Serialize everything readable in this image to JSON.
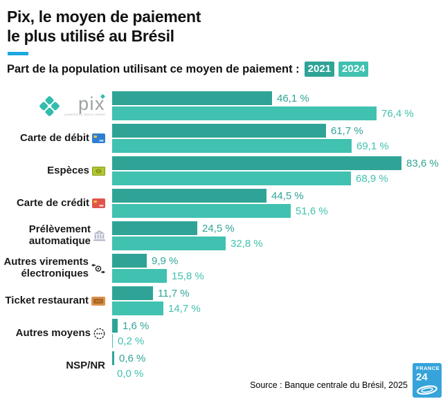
{
  "header": {
    "title_line1": "Pix, le moyen de paiement",
    "title_line2": "le plus utilisé au Brésil",
    "subtitle": "Part de la population utilisant ce moyen de paiement :"
  },
  "chart_data": {
    "type": "bar",
    "orientation": "horizontal",
    "unit": "%",
    "xlim": [
      0,
      100
    ],
    "grid": false,
    "legend_position": "top-right-of-subtitle",
    "categories": [
      "Pix",
      "Carte de débit",
      "Espèces",
      "Carte de crédit",
      "Prélèvement automatique",
      "Autres virements électroniques",
      "Ticket restaurant",
      "Autres moyens",
      "NSP/NR"
    ],
    "category_icons": [
      "pix-logo",
      "debit-card-icon",
      "cash-icon",
      "credit-card-icon",
      "bank-icon",
      "transfer-icon",
      "ticket-icon",
      "ellipsis-icon",
      null
    ],
    "series": [
      {
        "name": "2021",
        "color": "#2fa496",
        "values": [
          46.1,
          61.7,
          83.6,
          44.5,
          24.5,
          9.9,
          11.7,
          1.6,
          0.6
        ]
      },
      {
        "name": "2024",
        "color": "#41c1b0",
        "values": [
          76.4,
          69.1,
          68.9,
          51.6,
          32.8,
          15.8,
          14.7,
          0.2,
          0.0
        ]
      }
    ],
    "pix_logo": {
      "wordmark": "pix",
      "caption": "powered by Banco Central"
    }
  },
  "footer": {
    "source": "Source : Banque centrale du Brésil, 2025",
    "logo": {
      "line1": "FRANCE",
      "line2": "24"
    }
  },
  "colors": {
    "accent_underline": "#1aa7e3",
    "pix_teal": "#32bcad",
    "france24_blue": "#36a3db"
  }
}
